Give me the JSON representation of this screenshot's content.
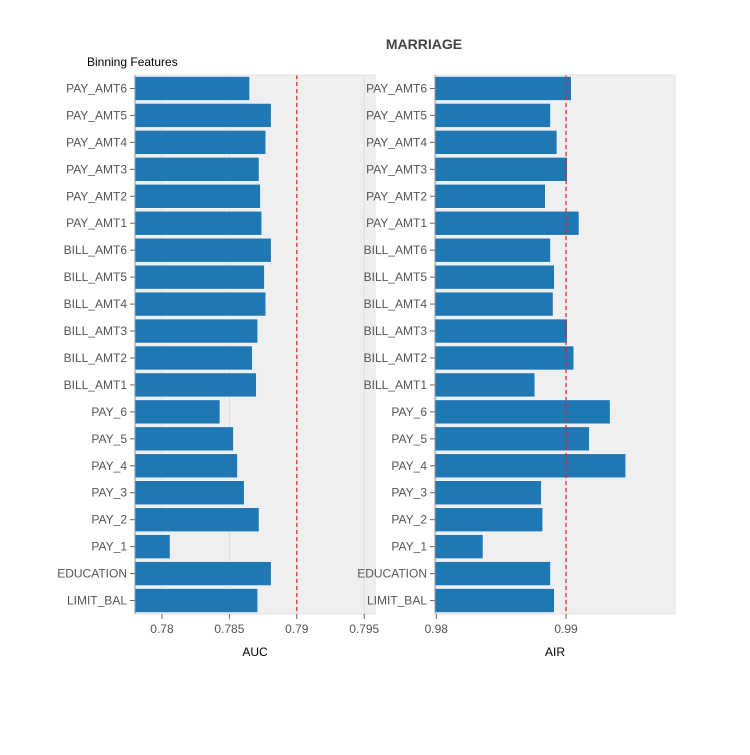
{
  "figure": {
    "title": "MARRIAGE",
    "subtitle": "Binning Features"
  },
  "colors": {
    "bar": "#1f77b4",
    "panel_bg": "#efeff0",
    "grid": "#ffffff",
    "reference_line": "#d62728",
    "tick_text": "#555555"
  },
  "chart_data": [
    {
      "type": "bar",
      "orientation": "horizontal",
      "xlabel": "AUC",
      "xlim": [
        0.778,
        0.7958
      ],
      "xticks": [
        0.78,
        0.785,
        0.79,
        0.795
      ],
      "xtick_labels": [
        "0.78",
        "0.785",
        "0.79",
        "0.795"
      ],
      "reference_line": 0.79,
      "grid": true,
      "categories": [
        "PAY_AMT6",
        "PAY_AMT5",
        "PAY_AMT4",
        "PAY_AMT3",
        "PAY_AMT2",
        "PAY_AMT1",
        "BILL_AMT6",
        "BILL_AMT5",
        "BILL_AMT4",
        "BILL_AMT3",
        "BILL_AMT2",
        "BILL_AMT1",
        "PAY_6",
        "PAY_5",
        "PAY_4",
        "PAY_3",
        "PAY_2",
        "PAY_1",
        "EDUCATION",
        "LIMIT_BAL"
      ],
      "values": [
        0.7865,
        0.7881,
        0.7877,
        0.7872,
        0.7873,
        0.7874,
        0.7881,
        0.7876,
        0.7877,
        0.7871,
        0.7867,
        0.787,
        0.7843,
        0.7853,
        0.7856,
        0.7861,
        0.7872,
        0.7806,
        0.7881,
        0.7871
      ]
    },
    {
      "type": "bar",
      "orientation": "horizontal",
      "xlabel": "AIR",
      "xlim": [
        0.9799,
        0.9984
      ],
      "xticks": [
        0.98,
        0.99
      ],
      "xtick_labels": [
        "0.98",
        "0.99"
      ],
      "reference_line": 0.99,
      "grid": true,
      "categories": [
        "PAY_AMT6",
        "PAY_AMT5",
        "PAY_AMT4",
        "PAY_AMT3",
        "PAY_AMT2",
        "PAY_AMT1",
        "BILL_AMT6",
        "BILL_AMT5",
        "BILL_AMT4",
        "BILL_AMT3",
        "BILL_AMT2",
        "BILL_AMT1",
        "PAY_6",
        "PAY_5",
        "PAY_4",
        "PAY_3",
        "PAY_2",
        "PAY_1",
        "EDUCATION",
        "LIMIT_BAL"
      ],
      "values": [
        0.9904,
        0.9888,
        0.9893,
        0.9901,
        0.9884,
        0.991,
        0.9888,
        0.9891,
        0.989,
        0.9901,
        0.9906,
        0.9876,
        0.9934,
        0.9918,
        0.9946,
        0.9881,
        0.9882,
        0.9836,
        0.9888,
        0.9891
      ]
    }
  ]
}
